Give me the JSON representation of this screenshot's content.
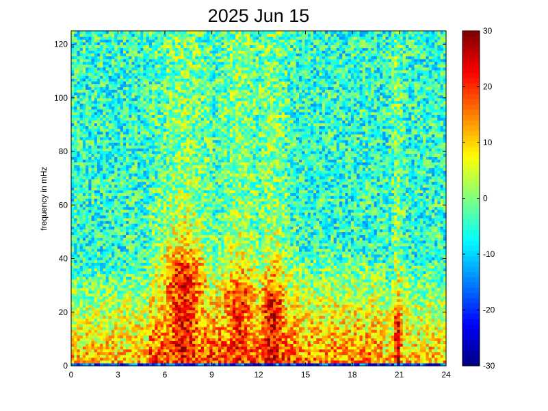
{
  "chart_data": {
    "type": "heatmap",
    "title": "2025 Jun 15",
    "xlabel": "",
    "ylabel": "frequency in mHz",
    "xlim": [
      0,
      24
    ],
    "ylim": [
      0,
      125
    ],
    "x_ticks": [
      "0",
      "3",
      "6",
      "9",
      "12",
      "15",
      "18",
      "21",
      "24"
    ],
    "y_ticks": [
      "0",
      "20",
      "40",
      "60",
      "80",
      "100",
      "120"
    ],
    "colorbar": {
      "colormap": "jet",
      "clim": [
        -30,
        30
      ],
      "ticks": [
        "30",
        "20",
        "10",
        "0",
        "-10",
        "-20",
        "-30"
      ]
    },
    "grid": false,
    "approx_structure": {
      "time_bins": 130,
      "freq_bins": 120,
      "description_of_features": [
        {
          "t_center": 7.2,
          "t_width": 1.7,
          "f_max": 35,
          "peak_dB": 22
        },
        {
          "t_center": 10.7,
          "t_width": 1.3,
          "f_max": 28,
          "peak_dB": 20
        },
        {
          "t_center": 12.9,
          "t_width": 1.0,
          "f_max": 25,
          "peak_dB": 24
        },
        {
          "t_center": 20.9,
          "t_width": 0.35,
          "f_max": 15,
          "peak_dB": 25
        }
      ]
    }
  }
}
